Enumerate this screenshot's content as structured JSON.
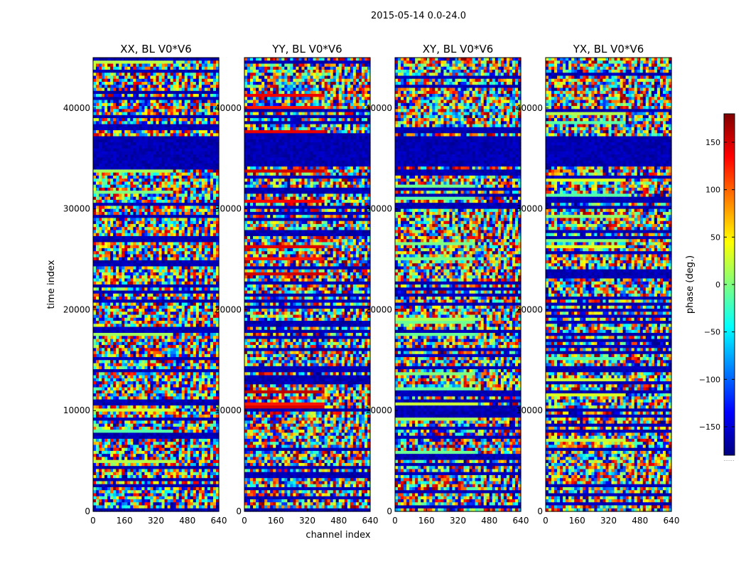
{
  "figure": {
    "suptitle": "2015-05-14 0.0-24.0",
    "ylabel": "time index",
    "xlabel": "channel index"
  },
  "colorbar": {
    "label": "phase (deg.)",
    "ticks": [
      150,
      100,
      50,
      0,
      -50,
      -100,
      -150
    ],
    "tick_labels": [
      "150",
      "100",
      "50",
      "0",
      "−50",
      "−100",
      "−150"
    ],
    "range": [
      -180,
      180
    ],
    "colormap": "jet",
    "below_mark": "......"
  },
  "chart_data": [
    {
      "type": "heatmap",
      "title": "XX, BL V0*V6",
      "xlim": [
        0,
        640
      ],
      "ylim": [
        0,
        45000
      ],
      "xticks": [
        0,
        160,
        320,
        480,
        640
      ],
      "yticks": [
        0,
        10000,
        20000,
        30000,
        40000
      ],
      "colormap": "jet",
      "value_range": [
        -180,
        180
      ],
      "description": "phase vs channel and time"
    },
    {
      "type": "heatmap",
      "title": "YY, BL V0*V6",
      "xlim": [
        0,
        640
      ],
      "ylim": [
        0,
        45000
      ],
      "xticks": [
        0,
        160,
        320,
        480,
        640
      ],
      "yticks": [
        0,
        10000,
        20000,
        30000,
        40000
      ],
      "colormap": "jet",
      "value_range": [
        -180,
        180
      ]
    },
    {
      "type": "heatmap",
      "title": "XY, BL V0*V6",
      "xlim": [
        0,
        640
      ],
      "ylim": [
        0,
        45000
      ],
      "xticks": [
        0,
        160,
        320,
        480,
        640
      ],
      "yticks": [
        0,
        10000,
        20000,
        30000,
        40000
      ],
      "colormap": "jet",
      "value_range": [
        -180,
        180
      ]
    },
    {
      "type": "heatmap",
      "title": "YX, BL V0*V6",
      "xlim": [
        0,
        640
      ],
      "ylim": [
        0,
        45000
      ],
      "xticks": [
        0,
        160,
        320,
        480,
        640
      ],
      "yticks": [
        0,
        10000,
        20000,
        30000,
        40000
      ],
      "colormap": "jet",
      "value_range": [
        -180,
        180
      ]
    }
  ]
}
